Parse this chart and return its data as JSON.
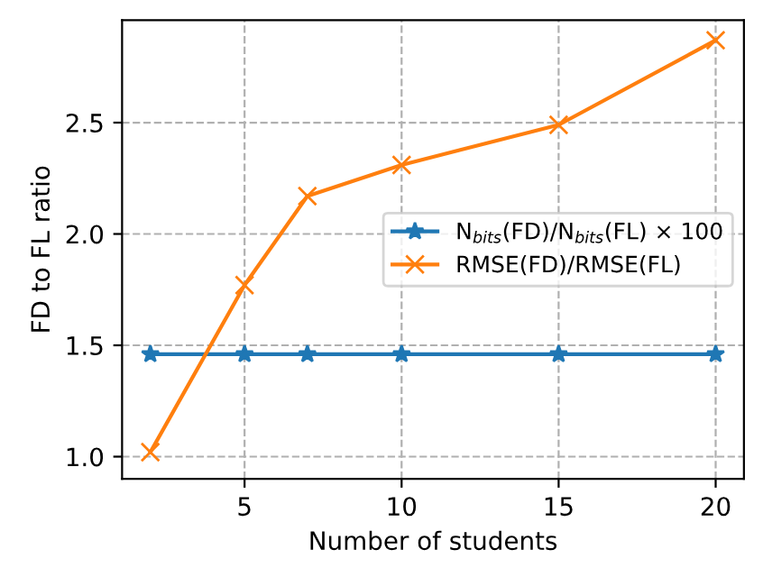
{
  "chart_data": {
    "type": "line",
    "xlabel": "Number of students",
    "ylabel": "FD to FL ratio",
    "x": [
      2,
      5,
      7,
      10,
      15,
      20
    ],
    "series": [
      {
        "name": "N$_{bits}$(FD)/N$_{bits}$(FL) × 100",
        "color": "#1f77b4",
        "marker": "star",
        "values": [
          1.46,
          1.46,
          1.46,
          1.46,
          1.46,
          1.46
        ]
      },
      {
        "name": "RMSE(FD)/RMSE(FL)",
        "color": "#ff7f0e",
        "marker": "cross",
        "values": [
          1.02,
          1.77,
          2.17,
          2.31,
          2.49,
          2.87
        ]
      }
    ],
    "xlim": [
      1.1,
      20.9
    ],
    "xticks": [
      5,
      10,
      15,
      20
    ],
    "ylim": [
      0.9,
      2.96
    ],
    "yticks": [
      {
        "value": 1,
        "label": "1.0"
      },
      1.5,
      {
        "value": 2,
        "label": "2.0"
      },
      2.5
    ],
    "grid": true,
    "legend": "right"
  }
}
